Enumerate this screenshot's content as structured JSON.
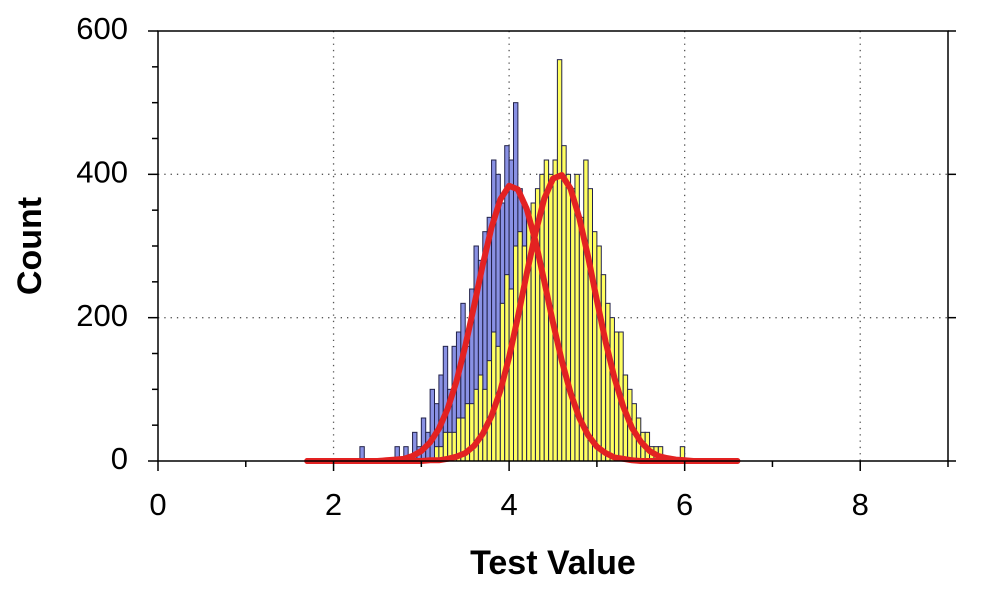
{
  "chart_data": {
    "type": "histogram",
    "xlabel": "Test Value",
    "ylabel": "Count",
    "xlim": [
      0,
      9
    ],
    "xticks": [
      0,
      2,
      4,
      6,
      8
    ],
    "xminorticks": [
      1,
      3,
      5,
      7,
      9
    ],
    "ylim": [
      0,
      600
    ],
    "yticks": [
      0,
      200,
      400,
      600
    ],
    "yminorticks": [
      50,
      100,
      150,
      250,
      300,
      350,
      450,
      500,
      550
    ],
    "grid": true,
    "series": [
      {
        "color": "#8991e4",
        "bins": [
          2.3,
          2.35,
          2.4,
          2.45,
          2.5,
          2.55,
          2.6,
          2.65,
          2.7,
          2.75,
          2.8,
          2.85,
          2.9,
          2.95,
          3,
          3.05,
          3.1,
          3.15,
          3.2,
          3.25,
          3.3,
          3.35,
          3.4,
          3.45,
          3.5,
          3.55,
          3.6,
          3.65,
          3.7,
          3.75,
          3.8,
          3.85,
          3.9,
          3.95,
          4,
          4.05,
          4.1,
          4.15,
          4.2,
          4.25,
          4.3,
          4.35,
          4.4,
          4.45,
          4.5,
          4.55,
          4.6,
          4.65,
          4.7,
          4.75,
          4.8,
          4.85,
          4.9,
          4.95,
          5,
          5.05,
          5.1,
          5.15,
          5.2,
          5.25,
          5.3,
          5.35,
          5.4
        ],
        "values": [
          20,
          0,
          0,
          0,
          0,
          0,
          0,
          0,
          20,
          0,
          20,
          0,
          40,
          20,
          60,
          40,
          100,
          80,
          120,
          160,
          100,
          160,
          180,
          220,
          160,
          240,
          300,
          280,
          320,
          340,
          420,
          400,
          360,
          440,
          420,
          500,
          380,
          360,
          340,
          300,
          320,
          280,
          240,
          240,
          180,
          160,
          140,
          120,
          100,
          80,
          60,
          60,
          40,
          40,
          20,
          20,
          20,
          0,
          20,
          0,
          0,
          20
        ]
      },
      {
        "color": "#ffff60",
        "bins": [
          3.15,
          3.2,
          3.25,
          3.3,
          3.35,
          3.4,
          3.45,
          3.5,
          3.55,
          3.6,
          3.65,
          3.7,
          3.75,
          3.8,
          3.85,
          3.9,
          3.95,
          4,
          4.05,
          4.1,
          4.15,
          4.2,
          4.25,
          4.3,
          4.35,
          4.4,
          4.45,
          4.5,
          4.55,
          4.6,
          4.65,
          4.7,
          4.75,
          4.8,
          4.85,
          4.9,
          4.95,
          5,
          5.05,
          5.1,
          5.15,
          5.2,
          5.25,
          5.3,
          5.35,
          5.4,
          5.45,
          5.5,
          5.55,
          5.6,
          5.65,
          5.7,
          5.75,
          5.8,
          5.85,
          5.9,
          5.95,
          6
        ],
        "values": [
          20,
          20,
          40,
          40,
          40,
          60,
          60,
          80,
          80,
          100,
          120,
          100,
          140,
          180,
          160,
          220,
          260,
          240,
          300,
          320,
          300,
          340,
          360,
          380,
          400,
          420,
          400,
          420,
          560,
          440,
          400,
          380,
          400,
          340,
          420,
          380,
          320,
          300,
          260,
          220,
          200,
          180,
          180,
          120,
          100,
          80,
          60,
          40,
          40,
          20,
          20,
          20,
          0,
          0,
          0,
          0,
          20
        ]
      }
    ],
    "curves": [
      {
        "color": "#e32222",
        "x": [
          1.7,
          1.8,
          1.9,
          2,
          2.1,
          2.2,
          2.3,
          2.4,
          2.5,
          2.6,
          2.7,
          2.8,
          2.9,
          3,
          3.1,
          3.2,
          3.3,
          3.4,
          3.5,
          3.6,
          3.7,
          3.8,
          3.9,
          4,
          4.1,
          4.2,
          4.3,
          4.4,
          4.5,
          4.6,
          4.7,
          4.8,
          4.9,
          5,
          5.1,
          5.2,
          5.3,
          5.4,
          5.5,
          5.6,
          5.7,
          5.8,
          5.9,
          6,
          6.1,
          6.2,
          6.3,
          6.4,
          6.5,
          6.6
        ],
        "values": [
          0,
          0,
          0,
          0,
          0,
          0,
          0,
          0,
          0,
          1,
          2,
          3,
          7,
          14,
          26,
          45,
          73,
          111,
          160,
          216,
          274,
          326,
          365,
          384,
          379,
          352,
          307,
          251,
          193,
          140,
          95,
          60,
          36,
          20,
          11,
          5,
          3,
          1,
          0,
          0,
          0,
          0,
          0,
          0,
          0,
          0,
          0,
          0,
          0,
          0
        ]
      },
      {
        "color": "#e32222",
        "x": [
          1.7,
          1.8,
          1.9,
          2,
          2.1,
          2.2,
          2.3,
          2.4,
          2.5,
          2.6,
          2.7,
          2.8,
          2.9,
          3,
          3.1,
          3.2,
          3.3,
          3.4,
          3.5,
          3.6,
          3.7,
          3.8,
          3.9,
          4,
          4.1,
          4.2,
          4.3,
          4.4,
          4.5,
          4.6,
          4.7,
          4.8,
          4.9,
          5,
          5.1,
          5.2,
          5.3,
          5.4,
          5.5,
          5.6,
          5.7,
          5.8,
          5.9,
          6,
          6.1,
          6.2,
          6.3,
          6.4,
          6.5,
          6.6
        ],
        "values": [
          0,
          0,
          0,
          0,
          0,
          0,
          0,
          0,
          0,
          0,
          0,
          0,
          0,
          0,
          1,
          1,
          3,
          6,
          11,
          21,
          38,
          63,
          98,
          145,
          201,
          261,
          318,
          366,
          394,
          399,
          380,
          339,
          285,
          224,
          166,
          116,
          76,
          46,
          27,
          14,
          7,
          4,
          2,
          1,
          0,
          0,
          0,
          0,
          0,
          0
        ]
      }
    ]
  }
}
